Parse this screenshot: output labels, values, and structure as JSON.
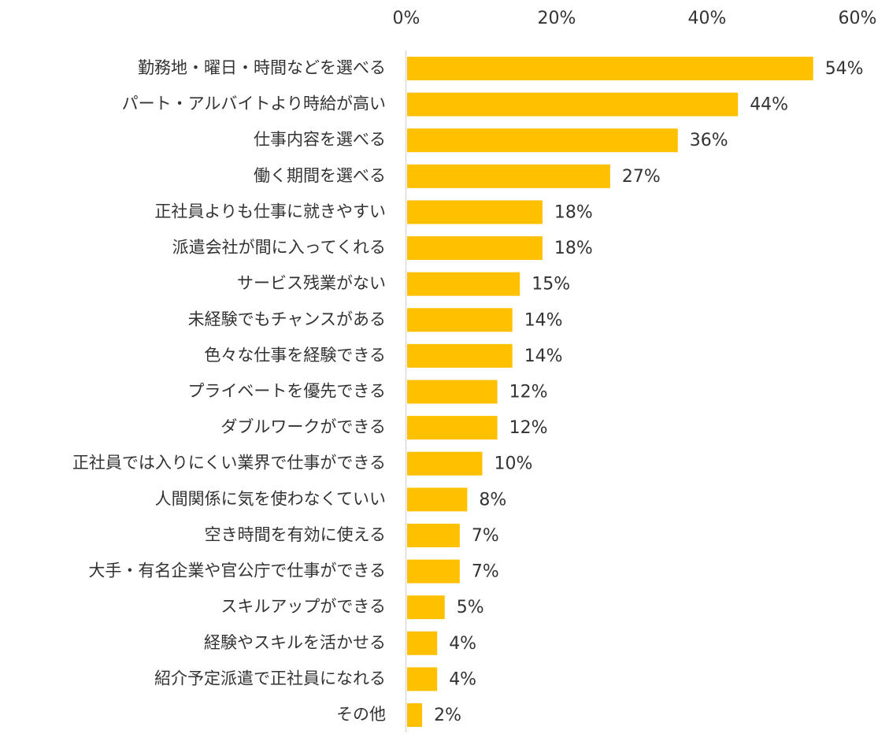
{
  "chart_data": {
    "type": "bar",
    "orientation": "horizontal",
    "title": "",
    "xlabel": "",
    "ylabel": "",
    "xlim": [
      0,
      60
    ],
    "x_ticks": [
      "0%",
      "20%",
      "40%",
      "60%"
    ],
    "x_tick_values": [
      0,
      20,
      40,
      60
    ],
    "x_axis_position": "top",
    "grid": false,
    "bar_color": "#FFC000",
    "categories": [
      "勤務地・曜日・時間などを選べる",
      "パート・アルバイトより時給が高い",
      "仕事内容を選べる",
      "働く期間を選べる",
      "正社員よりも仕事に就きやすい",
      "派遣会社が間に入ってくれる",
      "サービス残業がない",
      "未経験でもチャンスがある",
      "色々な仕事を経験できる",
      "プライベートを優先できる",
      "ダブルワークができる",
      "正社員では入りにくい業界で仕事ができる",
      "人間関係に気を使わなくていい",
      "空き時間を有効に使える",
      "大手・有名企業や官公庁で仕事ができる",
      "スキルアップができる",
      "経験やスキルを活かせる",
      "紹介予定派遣で正社員になれる",
      "その他"
    ],
    "values": [
      54,
      44,
      36,
      27,
      18,
      18,
      15,
      14,
      14,
      12,
      12,
      10,
      8,
      7,
      7,
      5,
      4,
      4,
      2
    ],
    "data_labels": [
      "54%",
      "44%",
      "36%",
      "27%",
      "18%",
      "18%",
      "15%",
      "14%",
      "14%",
      "12%",
      "12%",
      "10%",
      "8%",
      "7%",
      "7%",
      "5%",
      "4%",
      "4%",
      "2%"
    ]
  }
}
